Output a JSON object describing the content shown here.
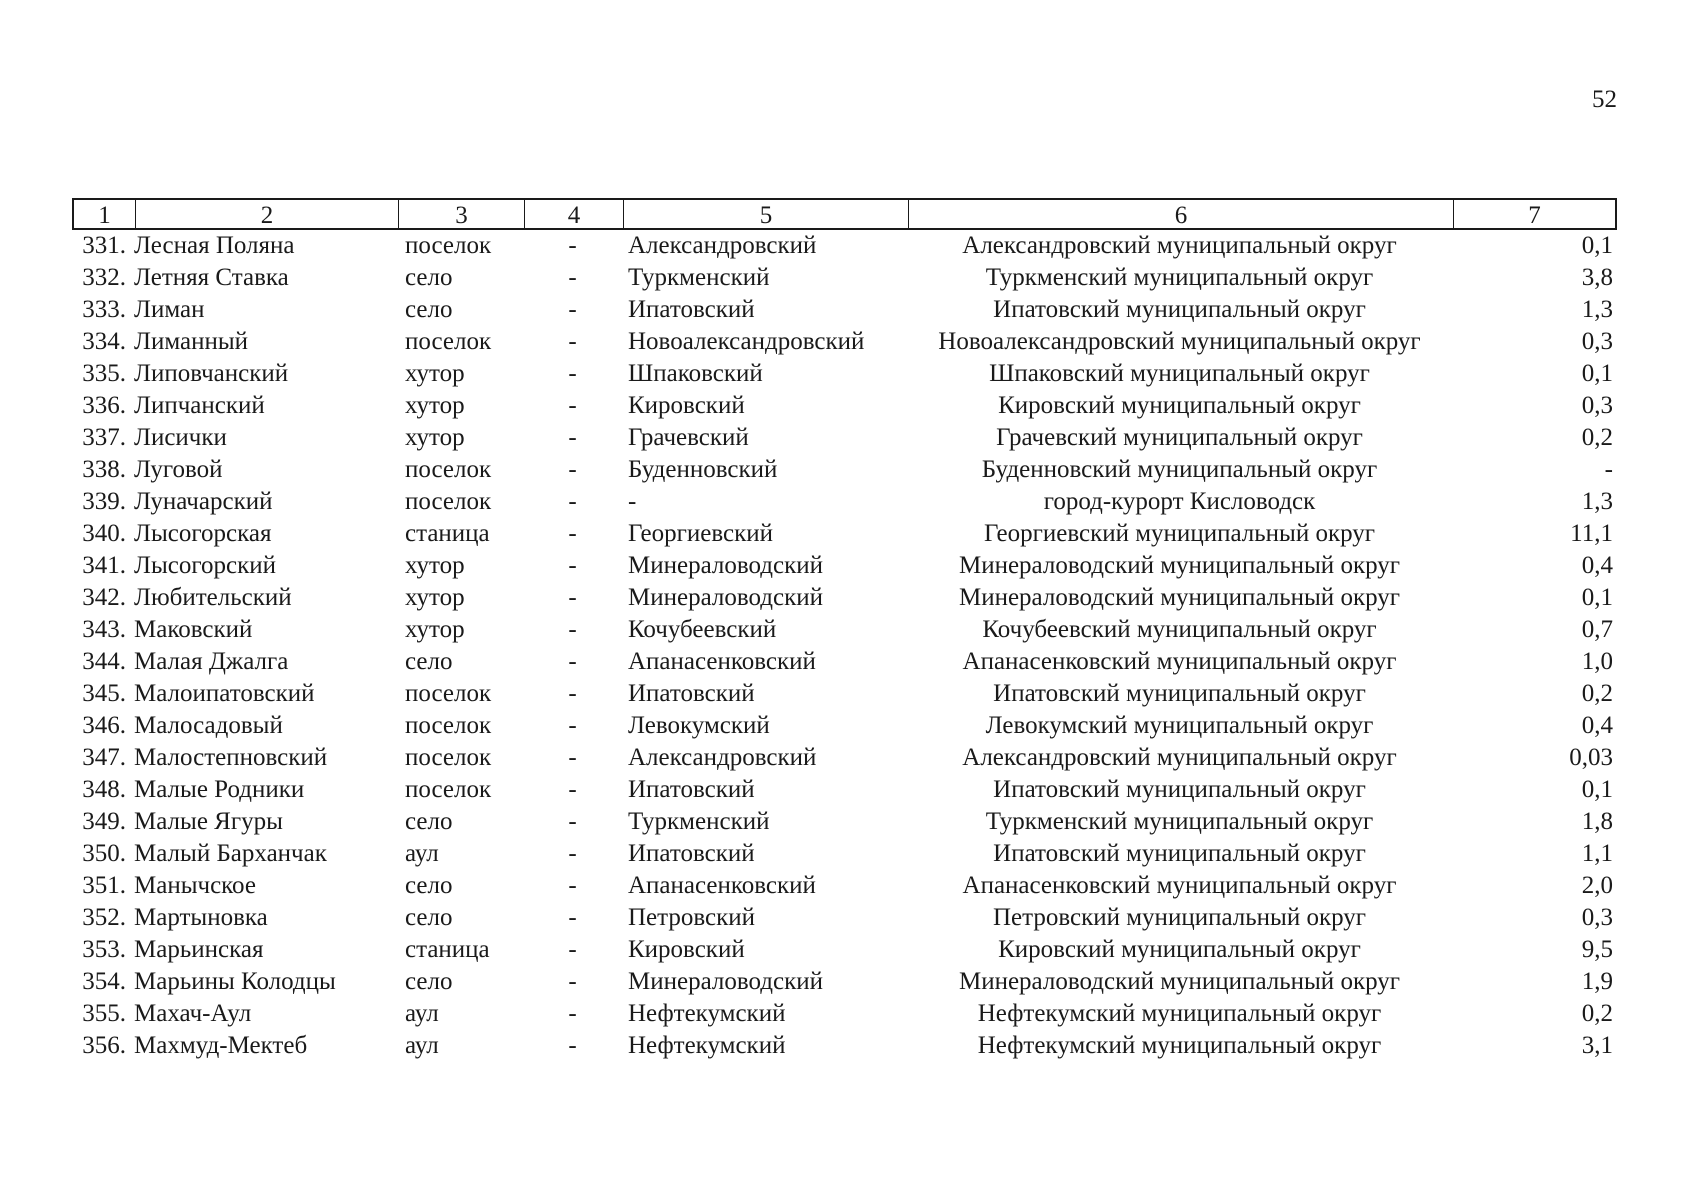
{
  "page_number": "52",
  "header": [
    "1",
    "2",
    "3",
    "4",
    "5",
    "6",
    "7"
  ],
  "rows": [
    [
      "331.",
      "Лесная Поляна",
      "поселок",
      "-",
      "Александровский",
      "Александровский муниципальный округ",
      "0,1"
    ],
    [
      "332.",
      "Летняя Ставка",
      "село",
      "-",
      "Туркменский",
      "Туркменский муниципальный округ",
      "3,8"
    ],
    [
      "333.",
      "Лиман",
      "село",
      "-",
      "Ипатовский",
      "Ипатовский муниципальный округ",
      "1,3"
    ],
    [
      "334.",
      "Лиманный",
      "поселок",
      "-",
      "Новоалександровский",
      "Новоалександровский муниципальный округ",
      "0,3"
    ],
    [
      "335.",
      "Липовчанский",
      "хутор",
      "-",
      "Шпаковский",
      "Шпаковский муниципальный округ",
      "0,1"
    ],
    [
      "336.",
      "Липчанский",
      "хутор",
      "-",
      "Кировский",
      "Кировский муниципальный округ",
      "0,3"
    ],
    [
      "337.",
      "Лисички",
      "хутор",
      "-",
      "Грачевский",
      "Грачевский муниципальный округ",
      "0,2"
    ],
    [
      "338.",
      "Луговой",
      "поселок",
      "-",
      "Буденновский",
      "Буденновский муниципальный округ",
      "-"
    ],
    [
      "339.",
      "Луначарский",
      "поселок",
      "-",
      "-",
      "город-курорт Кисловодск",
      "1,3"
    ],
    [
      "340.",
      "Лысогорская",
      "станица",
      "-",
      "Георгиевский",
      "Георгиевский муниципальный округ",
      "11,1"
    ],
    [
      "341.",
      "Лысогорский",
      "хутор",
      "-",
      "Минераловодский",
      "Минераловодский муниципальный округ",
      "0,4"
    ],
    [
      "342.",
      "Любительский",
      "хутор",
      "-",
      "Минераловодский",
      "Минераловодский муниципальный округ",
      "0,1"
    ],
    [
      "343.",
      "Маковский",
      "хутор",
      "-",
      "Кочубеевский",
      "Кочубеевский муниципальный округ",
      "0,7"
    ],
    [
      "344.",
      "Малая Джалга",
      "село",
      "-",
      "Апанасенковский",
      "Апанасенковский муниципальный округ",
      "1,0"
    ],
    [
      "345.",
      "Малоипатовский",
      "поселок",
      "-",
      "Ипатовский",
      "Ипатовский муниципальный округ",
      "0,2"
    ],
    [
      "346.",
      "Малосадовый",
      "поселок",
      "-",
      "Левокумский",
      "Левокумский муниципальный округ",
      "0,4"
    ],
    [
      "347.",
      "Малостепновский",
      "поселок",
      "-",
      "Александровский",
      "Александровский муниципальный округ",
      "0,03"
    ],
    [
      "348.",
      "Малые Родники",
      "поселок",
      "-",
      "Ипатовский",
      "Ипатовский муниципальный округ",
      "0,1"
    ],
    [
      "349.",
      "Малые Ягуры",
      "село",
      "-",
      "Туркменский",
      "Туркменский муниципальный округ",
      "1,8"
    ],
    [
      "350.",
      "Малый Барханчак",
      "аул",
      "-",
      "Ипатовский",
      "Ипатовский муниципальный округ",
      "1,1"
    ],
    [
      "351.",
      "Манычское",
      "село",
      "-",
      "Апанасенковский",
      "Апанасенковский муниципальный округ",
      "2,0"
    ],
    [
      "352.",
      "Мартыновка",
      "село",
      "-",
      "Петровский",
      "Петровский муниципальный округ",
      "0,3"
    ],
    [
      "353.",
      "Марьинская",
      "станица",
      "-",
      "Кировский",
      "Кировский муниципальный округ",
      "9,5"
    ],
    [
      "354.",
      "Марьины Колодцы",
      "село",
      "-",
      "Минераловодский",
      "Минераловодский муниципальный округ",
      "1,9"
    ],
    [
      "355.",
      "Махач-Аул",
      "аул",
      "-",
      "Нефтекумский",
      "Нефтекумский муниципальный округ",
      "0,2"
    ],
    [
      "356.",
      "Махмуд-Мектеб",
      "аул",
      "-",
      "Нефтекумский",
      "Нефтекумский муниципальный округ",
      "3,1"
    ]
  ]
}
